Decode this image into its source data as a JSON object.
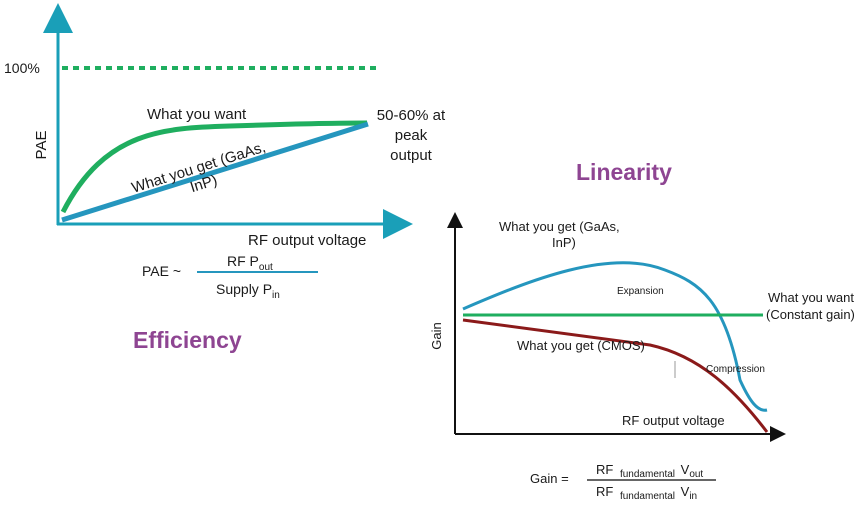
{
  "colors": {
    "axis": "#1a9fb8",
    "axis_dark": "#111111",
    "green": "#1fae5f",
    "blue": "#2596be",
    "red": "#8b1a1a",
    "heading": "#8e4592"
  },
  "efficiency": {
    "heading": "Efficiency",
    "y_label": "PAE",
    "x_label": "RF output voltage",
    "level_100": "100%",
    "want_label": "What you want",
    "get_label_line1": "What you get (GaAs,",
    "get_label_line2": "InP)",
    "peak_line1": "50-60% at",
    "peak_line2": "peak",
    "peak_line3": "output",
    "formula": {
      "lhs": "PAE ~",
      "num_main": "RF P",
      "num_sub": "out",
      "den_main": "Supply P",
      "den_sub": "in"
    }
  },
  "linearity": {
    "heading": "Linearity",
    "y_label": "Gain",
    "x_label": "RF output voltage",
    "get_gaas_line1": "What you get (GaAs,",
    "get_gaas_line2": "InP)",
    "want_line1": "What you want",
    "want_line2": "(Constant gain)",
    "get_cmos": "What you get (CMOS)",
    "expansion": "Expansion",
    "compression": "Compression",
    "formula": {
      "lhs": "Gain =",
      "num_rf": "RF",
      "num_sub": "fundamental",
      "num_v": "V",
      "num_vsub": "out",
      "den_rf": "RF",
      "den_sub": "fundamental",
      "den_v": "V",
      "den_vsub": "in"
    }
  }
}
